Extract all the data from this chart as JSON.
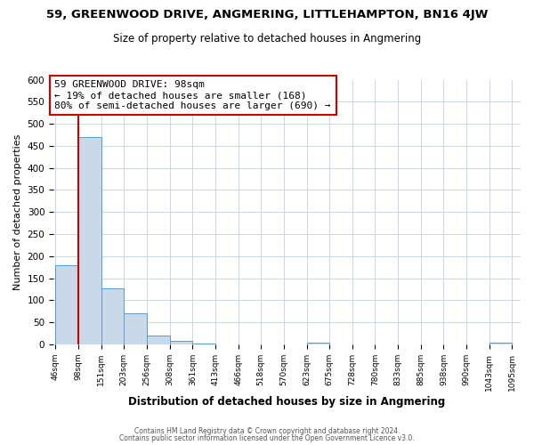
{
  "title": "59, GREENWOOD DRIVE, ANGMERING, LITTLEHAMPTON, BN16 4JW",
  "subtitle": "Size of property relative to detached houses in Angmering",
  "xlabel": "Distribution of detached houses by size in Angmering",
  "ylabel": "Number of detached properties",
  "bin_edges": [
    46,
    98,
    151,
    203,
    256,
    308,
    361,
    413,
    466,
    518,
    570,
    623,
    675,
    728,
    780,
    833,
    885,
    938,
    990,
    1043,
    1095
  ],
  "bin_labels": [
    "46sqm",
    "98sqm",
    "151sqm",
    "203sqm",
    "256sqm",
    "308sqm",
    "361sqm",
    "413sqm",
    "466sqm",
    "518sqm",
    "570sqm",
    "623sqm",
    "675sqm",
    "728sqm",
    "780sqm",
    "833sqm",
    "885sqm",
    "938sqm",
    "990sqm",
    "1043sqm",
    "1095sqm"
  ],
  "counts": [
    180,
    470,
    128,
    70,
    20,
    8,
    2,
    0,
    0,
    0,
    0,
    5,
    0,
    0,
    0,
    0,
    0,
    0,
    0,
    5
  ],
  "bar_color": "#c9d9e8",
  "bar_edge_color": "#5b9bd5",
  "property_line_x": 98,
  "property_line_color": "#cc0000",
  "annotation_text": "59 GREENWOOD DRIVE: 98sqm\n← 19% of detached houses are smaller (168)\n80% of semi-detached houses are larger (690) →",
  "annotation_box_color": "#ffffff",
  "annotation_box_edge": "#cc0000",
  "ylim": [
    0,
    600
  ],
  "yticks": [
    0,
    50,
    100,
    150,
    200,
    250,
    300,
    350,
    400,
    450,
    500,
    550,
    600
  ],
  "footer_line1": "Contains HM Land Registry data © Crown copyright and database right 2024.",
  "footer_line2": "Contains public sector information licensed under the Open Government Licence v3.0.",
  "bg_color": "#ffffff",
  "grid_color": "#c8d8e8"
}
